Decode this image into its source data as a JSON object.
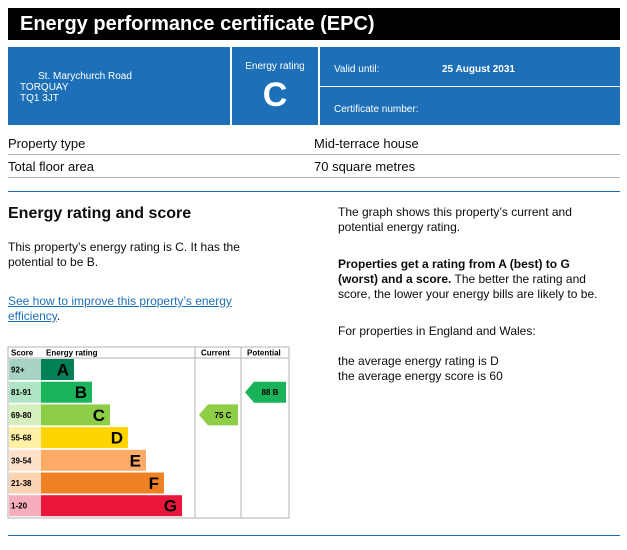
{
  "title": "Energy performance certificate (EPC)",
  "address": {
    "line1": "St. Marychurch Road",
    "line2": "TORQUAY",
    "line3": "TQ1 3JT"
  },
  "rating": {
    "label": "Energy rating",
    "value": "C"
  },
  "valid_until": {
    "label": "Valid until:",
    "value": "25 August 2031"
  },
  "certificate_number": {
    "label": "Certificate number:",
    "value": ""
  },
  "property": [
    {
      "key": "Property type",
      "value": "Mid-terrace house"
    },
    {
      "key": "Total floor area",
      "value": "70 square metres"
    }
  ],
  "section": {
    "heading": "Energy rating and score",
    "intro": "This property’s energy rating is C. It has the potential to be B.",
    "link": "See how to improve this property’s energy efficiency",
    "link_suffix": ".",
    "right_p1": "The graph shows this property’s current and potential energy rating.",
    "right_p2_bold": "Properties get a rating from A (best) to G (worst) and a score.",
    "right_p2_rest": " The better the rating and score, the lower your energy bills are likely to be.",
    "right_p3": "For properties in England and Wales:",
    "right_p4a": "the average energy rating is D",
    "right_p4b": "the average energy score is 60"
  },
  "chart_data": {
    "type": "table",
    "headers": {
      "score": "Score",
      "rating": "Energy rating",
      "current": "Current",
      "potential": "Potential"
    },
    "bands": [
      {
        "range": "92+",
        "letter": "A",
        "color": "#008054"
      },
      {
        "range": "81-91",
        "letter": "B",
        "color": "#19b459"
      },
      {
        "range": "69-80",
        "letter": "C",
        "color": "#8dce46"
      },
      {
        "range": "55-68",
        "letter": "D",
        "color": "#ffd500"
      },
      {
        "range": "39-54",
        "letter": "E",
        "color": "#fcaa65"
      },
      {
        "range": "21-38",
        "letter": "F",
        "color": "#ef8023"
      },
      {
        "range": "1-20",
        "letter": "G",
        "color": "#e9153b"
      }
    ],
    "current": {
      "score": 75,
      "letter": "C",
      "label": "75  C",
      "color": "#8dce46"
    },
    "potential": {
      "score": 88,
      "letter": "B",
      "label": "88  B",
      "color": "#19b459"
    }
  }
}
